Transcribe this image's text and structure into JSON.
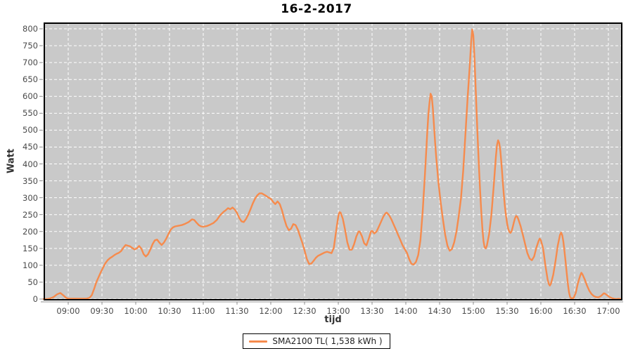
{
  "colors": {
    "series": "#F68B4D",
    "plot_bg": "#C9C9C9",
    "grid": "#FFFFFF",
    "plot_border": "#000000",
    "axis": "#8C8C8C",
    "tick_text": "#4A4A4A"
  },
  "chart_data": {
    "type": "line",
    "title": "16-2-2017",
    "xlabel": "tijd",
    "ylabel": "Watt",
    "ylim": [
      0,
      800
    ],
    "y_tick_step": 50,
    "grid": "white dashed on gray background",
    "legend_position": "bottom-center",
    "x_range_minutes": [
      -22,
      491
    ],
    "x_ticks": [
      {
        "label": "09:00",
        "m": 0
      },
      {
        "label": "09:30",
        "m": 30
      },
      {
        "label": "10:00",
        "m": 60
      },
      {
        "label": "10:30",
        "m": 90
      },
      {
        "label": "11:00",
        "m": 120
      },
      {
        "label": "11:30",
        "m": 150
      },
      {
        "label": "12:00",
        "m": 180
      },
      {
        "label": "12:30",
        "m": 210
      },
      {
        "label": "13:00",
        "m": 240
      },
      {
        "label": "13:30",
        "m": 270
      },
      {
        "label": "14:00",
        "m": 300
      },
      {
        "label": "14:30",
        "m": 330
      },
      {
        "label": "15:00",
        "m": 360
      },
      {
        "label": "15:30",
        "m": 390
      },
      {
        "label": "16:00",
        "m": 420
      },
      {
        "label": "16:30",
        "m": 450
      },
      {
        "label": "17:00",
        "m": 480
      }
    ],
    "legend": {
      "label": "SMA2100 TL( 1,538 kWh )"
    },
    "series": [
      {
        "name": "SMA2100 TL( 1,538 kWh )",
        "points": [
          [
            -22,
            0
          ],
          [
            -19,
            0
          ],
          [
            -16,
            2
          ],
          [
            -13,
            6
          ],
          [
            -10,
            14
          ],
          [
            -7,
            18
          ],
          [
            -4,
            10
          ],
          [
            -2,
            4
          ],
          [
            0,
            1
          ],
          [
            4,
            1
          ],
          [
            8,
            1
          ],
          [
            12,
            1
          ],
          [
            16,
            1
          ],
          [
            19,
            4
          ],
          [
            21,
            12
          ],
          [
            23,
            30
          ],
          [
            25,
            50
          ],
          [
            27,
            65
          ],
          [
            29,
            80
          ],
          [
            31,
            93
          ],
          [
            33,
            106
          ],
          [
            35,
            115
          ],
          [
            37,
            121
          ],
          [
            39,
            125
          ],
          [
            41,
            130
          ],
          [
            43,
            134
          ],
          [
            45,
            137
          ],
          [
            47,
            142
          ],
          [
            49,
            152
          ],
          [
            51,
            160
          ],
          [
            53,
            158
          ],
          [
            55,
            156
          ],
          [
            57,
            151
          ],
          [
            59,
            147
          ],
          [
            61,
            150
          ],
          [
            63,
            157
          ],
          [
            65,
            149
          ],
          [
            67,
            133
          ],
          [
            69,
            126
          ],
          [
            71,
            133
          ],
          [
            73,
            147
          ],
          [
            75,
            163
          ],
          [
            77,
            174
          ],
          [
            79,
            176
          ],
          [
            81,
            167
          ],
          [
            83,
            160
          ],
          [
            85,
            167
          ],
          [
            87,
            178
          ],
          [
            89,
            192
          ],
          [
            91,
            205
          ],
          [
            93,
            212
          ],
          [
            95,
            215
          ],
          [
            98,
            217
          ],
          [
            101,
            219
          ],
          [
            104,
            223
          ],
          [
            107,
            228
          ],
          [
            110,
            236
          ],
          [
            112,
            234
          ],
          [
            114,
            226
          ],
          [
            116,
            219
          ],
          [
            118,
            215
          ],
          [
            120,
            214
          ],
          [
            123,
            216
          ],
          [
            126,
            220
          ],
          [
            129,
            225
          ],
          [
            132,
            234
          ],
          [
            135,
            248
          ],
          [
            138,
            258
          ],
          [
            140,
            263
          ],
          [
            142,
            269
          ],
          [
            144,
            266
          ],
          [
            146,
            271
          ],
          [
            148,
            265
          ],
          [
            150,
            255
          ],
          [
            152,
            240
          ],
          [
            154,
            230
          ],
          [
            156,
            228
          ],
          [
            158,
            237
          ],
          [
            160,
            250
          ],
          [
            162,
            266
          ],
          [
            164,
            283
          ],
          [
            166,
            297
          ],
          [
            168,
            307
          ],
          [
            170,
            313
          ],
          [
            172,
            313
          ],
          [
            174,
            309
          ],
          [
            176,
            305
          ],
          [
            178,
            300
          ],
          [
            180,
            297
          ],
          [
            182,
            288
          ],
          [
            184,
            281
          ],
          [
            186,
            289
          ],
          [
            188,
            281
          ],
          [
            190,
            262
          ],
          [
            192,
            237
          ],
          [
            194,
            216
          ],
          [
            196,
            204
          ],
          [
            198,
            208
          ],
          [
            200,
            222
          ],
          [
            202,
            219
          ],
          [
            204,
            206
          ],
          [
            206,
            186
          ],
          [
            208,
            167
          ],
          [
            210,
            144
          ],
          [
            212,
            119
          ],
          [
            214,
            104
          ],
          [
            216,
            105
          ],
          [
            218,
            113
          ],
          [
            220,
            122
          ],
          [
            222,
            128
          ],
          [
            225,
            133
          ],
          [
            228,
            138
          ],
          [
            230,
            140
          ],
          [
            232,
            138
          ],
          [
            234,
            136
          ],
          [
            236,
            152
          ],
          [
            238,
            200
          ],
          [
            240,
            245
          ],
          [
            241,
            257
          ],
          [
            242,
            256
          ],
          [
            244,
            238
          ],
          [
            246,
            205
          ],
          [
            248,
            168
          ],
          [
            250,
            146
          ],
          [
            252,
            146
          ],
          [
            254,
            162
          ],
          [
            256,
            185
          ],
          [
            258,
            200
          ],
          [
            259,
            200
          ],
          [
            261,
            186
          ],
          [
            263,
            165
          ],
          [
            265,
            159
          ],
          [
            267,
            178
          ],
          [
            269,
            200
          ],
          [
            270,
            202
          ],
          [
            272,
            194
          ],
          [
            274,
            200
          ],
          [
            276,
            214
          ],
          [
            278,
            229
          ],
          [
            280,
            244
          ],
          [
            282,
            254
          ],
          [
            283,
            256
          ],
          [
            285,
            249
          ],
          [
            287,
            237
          ],
          [
            289,
            222
          ],
          [
            291,
            207
          ],
          [
            293,
            191
          ],
          [
            295,
            176
          ],
          [
            297,
            160
          ],
          [
            299,
            148
          ],
          [
            301,
            137
          ],
          [
            303,
            118
          ],
          [
            305,
            104
          ],
          [
            307,
            102
          ],
          [
            309,
            110
          ],
          [
            311,
            130
          ],
          [
            313,
            175
          ],
          [
            315,
            260
          ],
          [
            317,
            370
          ],
          [
            319,
            490
          ],
          [
            320,
            545
          ],
          [
            321,
            580
          ],
          [
            322,
            608
          ],
          [
            323,
            600
          ],
          [
            324,
            565
          ],
          [
            325,
            515
          ],
          [
            326,
            465
          ],
          [
            327,
            420
          ],
          [
            329,
            345
          ],
          [
            331,
            285
          ],
          [
            333,
            235
          ],
          [
            335,
            190
          ],
          [
            337,
            158
          ],
          [
            339,
            143
          ],
          [
            341,
            148
          ],
          [
            343,
            168
          ],
          [
            345,
            200
          ],
          [
            347,
            245
          ],
          [
            349,
            298
          ],
          [
            351,
            380
          ],
          [
            353,
            490
          ],
          [
            355,
            600
          ],
          [
            357,
            700
          ],
          [
            358,
            760
          ],
          [
            359,
            798
          ],
          [
            360,
            780
          ],
          [
            361,
            715
          ],
          [
            362,
            630
          ],
          [
            363,
            545
          ],
          [
            364,
            465
          ],
          [
            365,
            390
          ],
          [
            366,
            322
          ],
          [
            367,
            262
          ],
          [
            368,
            210
          ],
          [
            369,
            172
          ],
          [
            370,
            153
          ],
          [
            371,
            150
          ],
          [
            372,
            158
          ],
          [
            374,
            192
          ],
          [
            376,
            248
          ],
          [
            378,
            330
          ],
          [
            380,
            420
          ],
          [
            381,
            455
          ],
          [
            382,
            470
          ],
          [
            383,
            462
          ],
          [
            384,
            438
          ],
          [
            385,
            400
          ],
          [
            386,
            355
          ],
          [
            387,
            312
          ],
          [
            388,
            276
          ],
          [
            389,
            247
          ],
          [
            390,
            224
          ],
          [
            391,
            208
          ],
          [
            392,
            199
          ],
          [
            393,
            196
          ],
          [
            394,
            201
          ],
          [
            395,
            213
          ],
          [
            396,
            227
          ],
          [
            397,
            239
          ],
          [
            398,
            246
          ],
          [
            399,
            244
          ],
          [
            400,
            236
          ],
          [
            402,
            216
          ],
          [
            404,
            190
          ],
          [
            406,
            163
          ],
          [
            408,
            136
          ],
          [
            410,
            120
          ],
          [
            412,
            115
          ],
          [
            414,
            126
          ],
          [
            416,
            152
          ],
          [
            418,
            172
          ],
          [
            419,
            179
          ],
          [
            420,
            174
          ],
          [
            422,
            150
          ],
          [
            424,
            100
          ],
          [
            426,
            58
          ],
          [
            427,
            45
          ],
          [
            428,
            40
          ],
          [
            429,
            46
          ],
          [
            431,
            72
          ],
          [
            433,
            112
          ],
          [
            435,
            158
          ],
          [
            437,
            190
          ],
          [
            438,
            197
          ],
          [
            439,
            189
          ],
          [
            440,
            170
          ],
          [
            441,
            141
          ],
          [
            442,
            110
          ],
          [
            443,
            76
          ],
          [
            444,
            45
          ],
          [
            445,
            20
          ],
          [
            446,
            6
          ],
          [
            447,
            2
          ],
          [
            449,
            3
          ],
          [
            451,
            18
          ],
          [
            453,
            48
          ],
          [
            455,
            70
          ],
          [
            456,
            78
          ],
          [
            457,
            73
          ],
          [
            459,
            58
          ],
          [
            461,
            40
          ],
          [
            463,
            25
          ],
          [
            465,
            15
          ],
          [
            467,
            9
          ],
          [
            469,
            6
          ],
          [
            471,
            5
          ],
          [
            473,
            8
          ],
          [
            475,
            14
          ],
          [
            476,
            17
          ],
          [
            477,
            16
          ],
          [
            479,
            11
          ],
          [
            481,
            6
          ],
          [
            483,
            3
          ],
          [
            485,
            1
          ],
          [
            487,
            0
          ],
          [
            489,
            1
          ],
          [
            491,
            0
          ]
        ]
      }
    ]
  }
}
